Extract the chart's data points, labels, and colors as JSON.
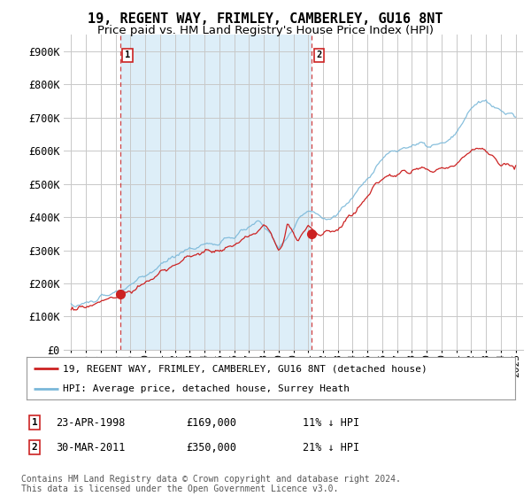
{
  "title": "19, REGENT WAY, FRIMLEY, CAMBERLEY, GU16 8NT",
  "subtitle": "Price paid vs. HM Land Registry's House Price Index (HPI)",
  "yticks": [
    0,
    100000,
    200000,
    300000,
    400000,
    500000,
    600000,
    700000,
    800000,
    900000
  ],
  "ytick_labels": [
    "£0",
    "£100K",
    "£200K",
    "£300K",
    "£400K",
    "£500K",
    "£600K",
    "£700K",
    "£800K",
    "£900K"
  ],
  "ylim": [
    0,
    950000
  ],
  "sale1_date_num": 1998.31,
  "sale1_price": 169000,
  "sale1_label": "1",
  "sale1_date_str": "23-APR-1998",
  "sale1_price_str": "£169,000",
  "sale1_hpi_str": "11% ↓ HPI",
  "sale2_date_num": 2011.24,
  "sale2_price": 350000,
  "sale2_label": "2",
  "sale2_date_str": "30-MAR-2011",
  "sale2_price_str": "£350,000",
  "sale2_hpi_str": "21% ↓ HPI",
  "hpi_color": "#7ab8d9",
  "price_paid_color": "#cc2222",
  "vline_color": "#cc2222",
  "grid_color": "#c8c8c8",
  "shading_color": "#ddeef8",
  "background_color": "#ffffff",
  "legend_label_price": "19, REGENT WAY, FRIMLEY, CAMBERLEY, GU16 8NT (detached house)",
  "legend_label_hpi": "HPI: Average price, detached house, Surrey Heath",
  "footnote": "Contains HM Land Registry data © Crown copyright and database right 2024.\nThis data is licensed under the Open Government Licence v3.0.",
  "title_fontsize": 11,
  "subtitle_fontsize": 9.5,
  "axis_fontsize": 8.5,
  "legend_fontsize": 8,
  "footnote_fontsize": 7
}
